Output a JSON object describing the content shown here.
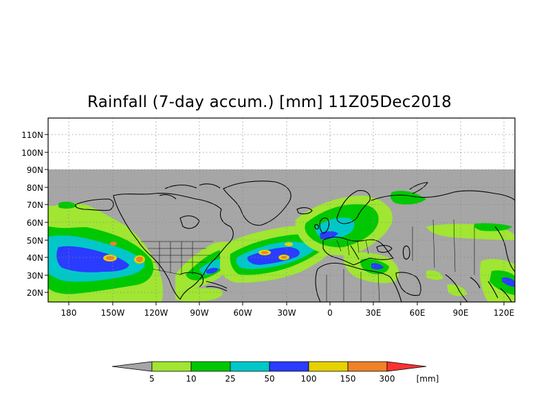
{
  "title": "Rainfall (7-day accum.) [mm] 11Z05Dec2018",
  "lat_labels": [
    "110N",
    "100N",
    "90N",
    "80N",
    "70N",
    "60N",
    "50N",
    "40N",
    "30N",
    "20N"
  ],
  "lon_labels": [
    "180",
    "150W",
    "120W",
    "90W",
    "60W",
    "30W",
    "0",
    "30E",
    "60E",
    "90E",
    "120E"
  ],
  "colorbar": {
    "unit": "[mm]",
    "thresholds": [
      "5",
      "10",
      "25",
      "50",
      "100",
      "150",
      "300"
    ],
    "colors": [
      "#a6a6a6",
      "#a0e632",
      "#00c800",
      "#00c8c8",
      "#2a3cff",
      "#e6d200",
      "#f08228",
      "#ff3232"
    ]
  },
  "colors": {
    "no_data": "#ffffff",
    "dry": "#a6a6a6",
    "grid": "#888888",
    "coast": "#000000"
  }
}
